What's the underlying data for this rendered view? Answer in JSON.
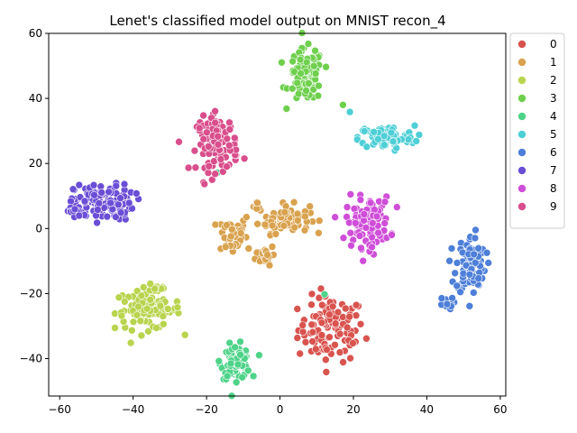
{
  "chart_data": {
    "type": "scatter",
    "title": "Lenet's classified model output on MNIST recon_4",
    "xlabel": "",
    "ylabel": "",
    "xlim": [
      -63,
      61.5
    ],
    "ylim": [
      -51.5,
      60
    ],
    "xticks": [
      -60,
      -40,
      -20,
      0,
      20,
      40,
      60
    ],
    "yticks": [
      -40,
      -20,
      0,
      20,
      40,
      60
    ],
    "xtick_labels": [
      "−60",
      "−40",
      "−20",
      "0",
      "20",
      "40",
      "60"
    ],
    "ytick_labels": [
      "−40",
      "−20",
      "0",
      "20",
      "40",
      "60"
    ],
    "legend_position": "outside-right",
    "series": [
      {
        "name": "0",
        "color": "#d9534f",
        "clusters": [
          {
            "cx": 14,
            "cy": -31,
            "sx": 4.5,
            "sy": 5,
            "n": 110
          }
        ]
      },
      {
        "name": "1",
        "color": "#d9a24e",
        "clusters": [
          {
            "cx": -13,
            "cy": -2,
            "sx": 2,
            "sy": 3,
            "n": 45
          },
          {
            "cx": -4,
            "cy": -8,
            "sx": 1.3,
            "sy": 1.6,
            "n": 25
          },
          {
            "cx": 1,
            "cy": 3,
            "sx": 3.5,
            "sy": 2.2,
            "n": 70
          },
          {
            "cx": -6,
            "cy": 7,
            "sx": 0.8,
            "sy": 0.6,
            "n": 6
          }
        ]
      },
      {
        "name": "2",
        "color": "#b9d44e",
        "clusters": [
          {
            "cx": -36,
            "cy": -25,
            "sx": 4.5,
            "sy": 3,
            "n": 100
          },
          {
            "cx": -34,
            "cy": -18,
            "sx": 1.5,
            "sy": 1,
            "n": 10
          }
        ]
      },
      {
        "name": "3",
        "color": "#6fd04e",
        "clusters": [
          {
            "cx": 7,
            "cy": 47,
            "sx": 2.3,
            "sy": 4,
            "n": 110
          },
          {
            "cx": 17,
            "cy": 38,
            "sx": 0.2,
            "sy": 0.3,
            "n": 1
          }
        ]
      },
      {
        "name": "4",
        "color": "#4ed389",
        "clusters": [
          {
            "cx": -12,
            "cy": -41,
            "sx": 2,
            "sy": 2.6,
            "n": 80
          },
          {
            "cx": 12,
            "cy": -20,
            "sx": 0.2,
            "sy": 0.2,
            "n": 1
          },
          {
            "cx": -17,
            "cy": 17.5,
            "sx": 0.2,
            "sy": 0.2,
            "n": 1
          }
        ]
      },
      {
        "name": "5",
        "color": "#4ecfd6",
        "clusters": [
          {
            "cx": 29,
            "cy": 28,
            "sx": 3.8,
            "sy": 1.8,
            "n": 95
          },
          {
            "cx": 19,
            "cy": 36,
            "sx": 0.2,
            "sy": 0.2,
            "n": 1
          }
        ]
      },
      {
        "name": "6",
        "color": "#4e7fd9",
        "clusters": [
          {
            "cx": 52,
            "cy": -11,
            "sx": 2,
            "sy": 4.5,
            "n": 100
          },
          {
            "cx": 45,
            "cy": -23,
            "sx": 1.2,
            "sy": 0.9,
            "n": 12
          }
        ]
      },
      {
        "name": "7",
        "color": "#6b4ed6",
        "clusters": [
          {
            "cx": -48,
            "cy": 8,
            "sx": 4,
            "sy": 2.8,
            "n": 120
          },
          {
            "cx": -56,
            "cy": 5,
            "sx": 1.2,
            "sy": 0.9,
            "n": 15
          }
        ]
      },
      {
        "name": "8",
        "color": "#cf4ed9",
        "clusters": [
          {
            "cx": 24,
            "cy": 2,
            "sx": 3,
            "sy": 3.8,
            "n": 110
          }
        ]
      },
      {
        "name": "9",
        "color": "#d94e8c",
        "clusters": [
          {
            "cx": -17,
            "cy": 26,
            "sx": 2.8,
            "sy": 4.2,
            "n": 120
          }
        ]
      }
    ]
  }
}
